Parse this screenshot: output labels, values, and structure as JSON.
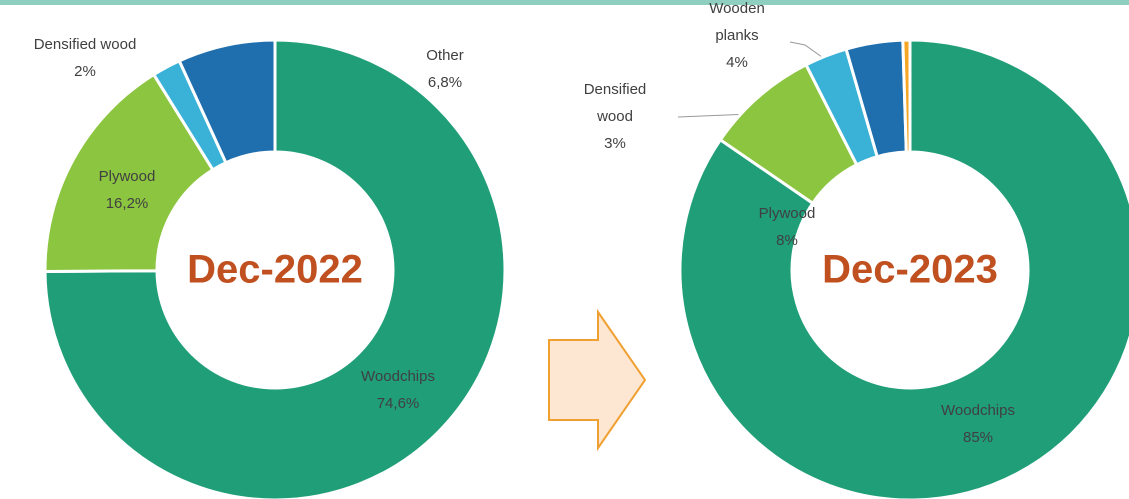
{
  "chart_data": [
    {
      "type": "donut",
      "title": "Dec-2022",
      "categories": [
        "Woodchips",
        "Plywood",
        "Densified wood",
        "Other"
      ],
      "values": [
        74.6,
        16.2,
        2,
        6.8
      ],
      "value_labels": [
        "74,6%",
        "16,2%",
        "2%",
        "6,8%"
      ],
      "colors": [
        "#1f9e78",
        "#8cc540",
        "#3ab2d8",
        "#1f6eae"
      ]
    },
    {
      "type": "donut",
      "title": "Dec-2023",
      "categories": [
        "Woodchips",
        "Plywood",
        "Densified wood",
        "Wooden planks",
        null
      ],
      "values": [
        85,
        8,
        3,
        4,
        0.5
      ],
      "value_labels": [
        "85%",
        "8%",
        "3%",
        "4%",
        null
      ],
      "colors": [
        "#1f9e78",
        "#8cc540",
        "#3ab2d8",
        "#1f6eae",
        "#f5a623"
      ]
    }
  ]
}
